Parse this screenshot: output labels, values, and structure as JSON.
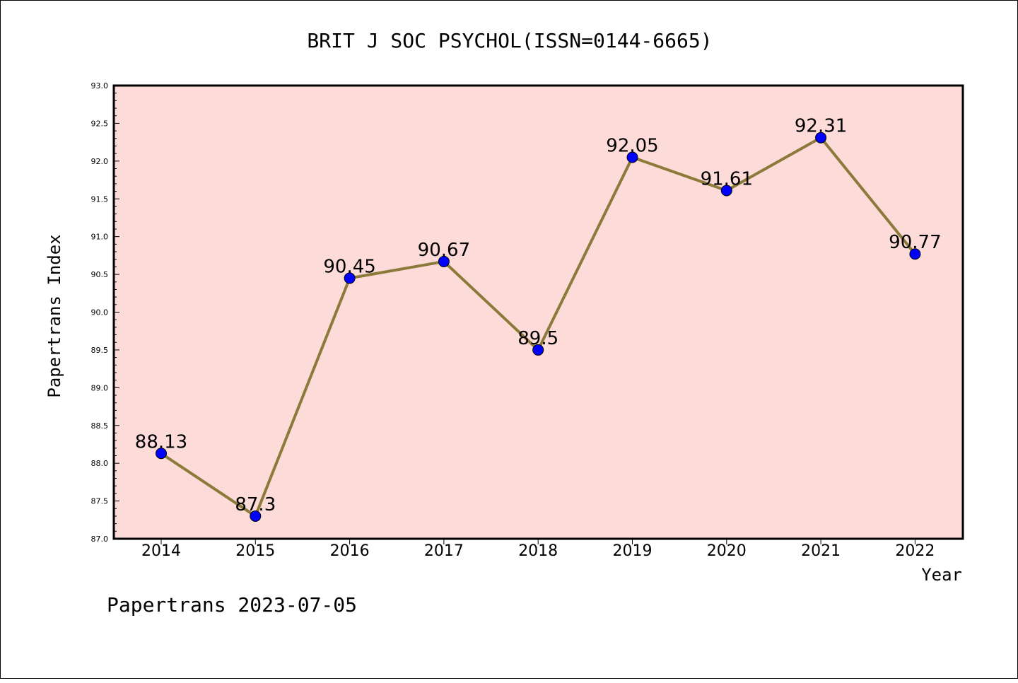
{
  "chart_data": {
    "type": "line",
    "title": "BRIT J SOC PSYCHOL(ISSN=0144-6665)",
    "xlabel": "Year",
    "ylabel": "Papertrans Index",
    "categories": [
      "2014",
      "2015",
      "2016",
      "2017",
      "2018",
      "2019",
      "2020",
      "2021",
      "2022"
    ],
    "series": [
      {
        "values": [
          88.13,
          87.3,
          90.45,
          90.67,
          89.5,
          92.05,
          91.61,
          92.31,
          90.77
        ]
      }
    ],
    "data_labels": [
      "88.13",
      "87.3",
      "90.45",
      "90.67",
      "89.5",
      "92.05",
      "91.61",
      "92.31",
      "90.77"
    ],
    "ylim": [
      87.0,
      93.0
    ],
    "y_ticks": [
      "87.0",
      "87.5",
      "88.0",
      "88.5",
      "89.0",
      "89.5",
      "90.0",
      "90.5",
      "91.0",
      "91.5",
      "92.0",
      "92.5",
      "93.0"
    ],
    "grid": false,
    "colors": {
      "plot_bg": "#fddbd9",
      "line": "#8b7a3a",
      "marker": "#0000ff"
    }
  },
  "footer": "Papertrans 2023-07-05"
}
